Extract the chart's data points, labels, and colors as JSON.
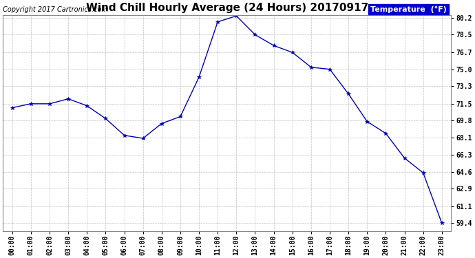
{
  "title": "Wind Chill Hourly Average (24 Hours) 20170917",
  "copyright": "Copyright 2017 Cartronics.com",
  "legend_label": "Temperature  (°F)",
  "hours": [
    "00:00",
    "01:00",
    "02:00",
    "03:00",
    "04:00",
    "05:00",
    "06:00",
    "07:00",
    "08:00",
    "09:00",
    "10:00",
    "11:00",
    "12:00",
    "13:00",
    "14:00",
    "15:00",
    "16:00",
    "17:00",
    "18:00",
    "19:00",
    "20:00",
    "21:00",
    "22:00",
    "23:00"
  ],
  "values": [
    71.1,
    71.5,
    71.5,
    72.0,
    71.3,
    70.0,
    68.3,
    68.0,
    69.5,
    70.2,
    74.2,
    79.8,
    80.4,
    78.5,
    77.4,
    76.7,
    75.2,
    75.0,
    72.5,
    69.7,
    68.5,
    66.0,
    64.5,
    59.4
  ],
  "yticks": [
    59.4,
    61.1,
    62.9,
    64.6,
    66.3,
    68.1,
    69.8,
    71.5,
    73.3,
    75.0,
    76.7,
    78.5,
    80.2
  ],
  "line_color": "#0000bb",
  "marker_color": "#0000bb",
  "bg_color": "#ffffff",
  "grid_color": "#b0b0b0",
  "title_fontsize": 11,
  "tick_fontsize": 7,
  "copyright_fontsize": 7,
  "legend_bg": "#0000cc",
  "legend_fg": "#ffffff",
  "legend_fontsize": 8
}
